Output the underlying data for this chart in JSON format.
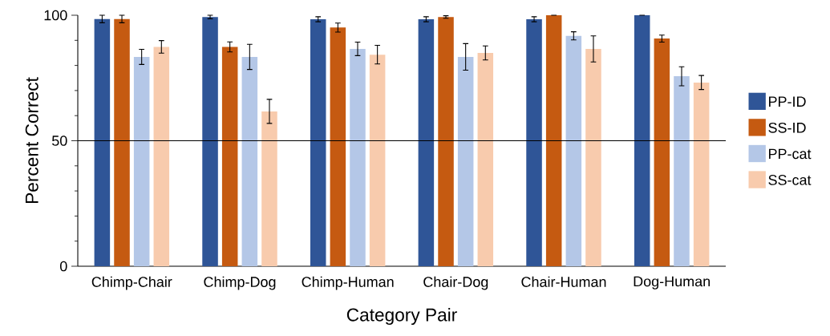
{
  "chart_data": {
    "type": "bar",
    "xlabel": "Category Pair",
    "ylabel": "Percent Correct",
    "categories": [
      "Chimp-Chair",
      "Chimp-Dog",
      "Chimp-Human",
      "Chair-Dog",
      "Chair-Human",
      "Dog-Human"
    ],
    "series": [
      {
        "name": "PP-ID",
        "color": "#2f5597",
        "values": [
          98.5,
          99.3,
          98.4,
          98.4,
          98.4,
          100
        ],
        "errors": [
          1.5,
          0.7,
          1,
          1,
          1,
          0
        ]
      },
      {
        "name": "SS-ID",
        "color": "#c55a11",
        "values": [
          98.5,
          87.4,
          95.1,
          99.3,
          100,
          90.7
        ],
        "errors": [
          1.5,
          2,
          1.8,
          0.5,
          0,
          1.4
        ]
      },
      {
        "name": "PP-cat",
        "color": "#b4c7e7",
        "values": [
          83.4,
          83.4,
          86.6,
          83.4,
          91.8,
          75.7
        ],
        "errors": [
          3,
          5,
          2.7,
          5.3,
          1.6,
          3.8
        ]
      },
      {
        "name": "SS-cat",
        "color": "#f8cbad",
        "values": [
          87.4,
          61.7,
          84.3,
          85,
          86.6,
          73.2
        ],
        "errors": [
          2.5,
          4.8,
          3.7,
          2.8,
          5.2,
          2.8
        ]
      }
    ],
    "ylim": [
      0,
      100
    ],
    "yticks": [
      0,
      {
        "value": 10,
        "label": null
      },
      {
        "value": 20,
        "label": null
      },
      {
        "value": 30,
        "label": null
      },
      {
        "value": 40,
        "label": null
      },
      50,
      {
        "value": 60,
        "label": null
      },
      {
        "value": 70,
        "label": null
      },
      {
        "value": 80,
        "label": null
      },
      {
        "value": 90,
        "label": null
      },
      100
    ],
    "ref_lines": [
      {
        "axis": "y",
        "value": 50,
        "color": "#000000"
      }
    ],
    "legend": "right",
    "grid": false
  }
}
